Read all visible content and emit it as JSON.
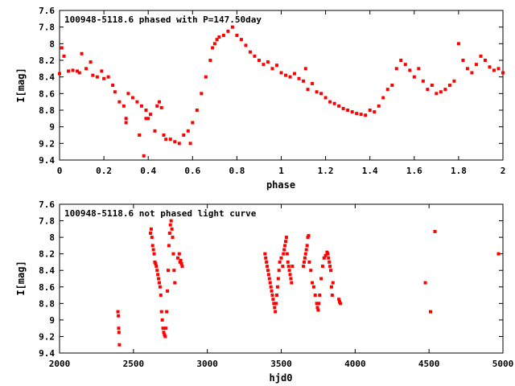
{
  "colors": {
    "points": "#ff0000",
    "frame": "#000000",
    "background": "#ffffff"
  },
  "chart_data": [
    {
      "type": "scatter",
      "title": "100948-5118.6 phased with P=147.50day",
      "xlabel": "phase",
      "ylabel": "I[mag]",
      "xlim": [
        0,
        2
      ],
      "ylim": [
        7.6,
        9.4
      ],
      "y_inverted": true,
      "grid": false,
      "legend": "none",
      "x_ticks": [
        "0",
        "0.2",
        "0.4",
        "0.6",
        "0.8",
        "1",
        "1.2",
        "1.4",
        "1.6",
        "1.8",
        "2"
      ],
      "y_ticks": [
        "7.6",
        "7.8",
        "8",
        "8.2",
        "8.4",
        "8.6",
        "8.8",
        "9",
        "9.2",
        "9.4"
      ],
      "series": [
        {
          "x": [
            0.0,
            0.01,
            0.02,
            0.04,
            0.06,
            0.08,
            0.09,
            0.1,
            0.12,
            0.14,
            0.15,
            0.17,
            0.19,
            0.2,
            0.22,
            0.24,
            0.25,
            0.27,
            0.29,
            0.3,
            0.3,
            0.31,
            0.33,
            0.35,
            0.36,
            0.37,
            0.38,
            0.39,
            0.39,
            0.4,
            0.41,
            0.43,
            0.44,
            0.45,
            0.46,
            0.47,
            0.48,
            0.5,
            0.52,
            0.54,
            0.56,
            0.58,
            0.59,
            0.6,
            0.62,
            0.64,
            0.66,
            0.68,
            0.69,
            0.7,
            0.71,
            0.72,
            0.74,
            0.76,
            0.78,
            0.8,
            0.82,
            0.84,
            0.86,
            0.88,
            0.9,
            0.92,
            0.94,
            0.96,
            0.98,
            1.0,
            1.02,
            1.04,
            1.06,
            1.08,
            1.1,
            1.11,
            1.12,
            1.14,
            1.16,
            1.18,
            1.2,
            1.22,
            1.24,
            1.26,
            1.28,
            1.3,
            1.32,
            1.34,
            1.36,
            1.38,
            1.4,
            1.42,
            1.44,
            1.46,
            1.48,
            1.5,
            1.52,
            1.54,
            1.56,
            1.58,
            1.6,
            1.62,
            1.64,
            1.66,
            1.68,
            1.7,
            1.72,
            1.74,
            1.76,
            1.78,
            1.8,
            1.82,
            1.84,
            1.86,
            1.88,
            1.9,
            1.92,
            1.94,
            1.96,
            1.98,
            2.0
          ],
          "y": [
            8.36,
            8.05,
            8.15,
            8.33,
            8.32,
            8.33,
            8.35,
            8.12,
            8.3,
            8.22,
            8.38,
            8.4,
            8.33,
            8.42,
            8.4,
            8.5,
            8.58,
            8.7,
            8.75,
            8.9,
            8.95,
            8.6,
            8.65,
            8.7,
            9.1,
            8.75,
            9.35,
            8.8,
            8.9,
            8.9,
            8.85,
            9.05,
            8.75,
            8.7,
            8.77,
            9.1,
            9.15,
            9.15,
            9.18,
            9.2,
            9.1,
            9.05,
            9.2,
            8.95,
            8.8,
            8.6,
            8.4,
            8.2,
            8.05,
            8.0,
            7.95,
            7.92,
            7.9,
            7.85,
            7.8,
            7.9,
            7.95,
            8.02,
            8.1,
            8.15,
            8.2,
            8.25,
            8.22,
            8.3,
            8.26,
            8.35,
            8.38,
            8.4,
            8.36,
            8.42,
            8.45,
            8.3,
            8.55,
            8.48,
            8.58,
            8.6,
            8.65,
            8.7,
            8.72,
            8.75,
            8.78,
            8.8,
            8.82,
            8.84,
            8.85,
            8.86,
            8.8,
            8.82,
            8.75,
            8.65,
            8.55,
            8.5,
            8.3,
            8.2,
            8.25,
            8.32,
            8.4,
            8.3,
            8.45,
            8.55,
            8.5,
            8.6,
            8.58,
            8.55,
            8.5,
            8.45,
            8.0,
            8.2,
            8.3,
            8.35,
            8.25,
            8.15,
            8.2,
            8.28,
            8.32,
            8.3,
            8.35
          ]
        }
      ]
    },
    {
      "type": "scatter",
      "title": "100948-5118.6 not phased light curve",
      "xlabel": "hjd0",
      "ylabel": "I[mag]",
      "xlim": [
        2000,
        5000
      ],
      "ylim": [
        7.6,
        9.4
      ],
      "y_inverted": true,
      "grid": false,
      "legend": "none",
      "x_ticks": [
        "2000",
        "2500",
        "3000",
        "3500",
        "4000",
        "4500",
        "5000"
      ],
      "y_ticks": [
        "7.6",
        "7.8",
        "8",
        "8.2",
        "8.4",
        "8.6",
        "8.8",
        "9",
        "9.2",
        "9.4"
      ],
      "series": [
        {
          "x": [
            2395,
            2398,
            2400,
            2402,
            2405,
            2615,
            2620,
            2625,
            2630,
            2635,
            2640,
            2645,
            2650,
            2655,
            2660,
            2665,
            2670,
            2675,
            2680,
            2685,
            2690,
            2695,
            2700,
            2705,
            2710,
            2715,
            2720,
            2725,
            2730,
            2735,
            2740,
            2745,
            2750,
            2755,
            2760,
            2765,
            2770,
            2775,
            2780,
            2800,
            2810,
            2815,
            2820,
            2825,
            2830,
            3390,
            3395,
            3400,
            3405,
            3410,
            3415,
            3420,
            3425,
            3430,
            3435,
            3440,
            3445,
            3450,
            3455,
            3460,
            3465,
            3470,
            3475,
            3480,
            3485,
            3490,
            3500,
            3510,
            3515,
            3520,
            3525,
            3530,
            3535,
            3540,
            3545,
            3550,
            3555,
            3560,
            3565,
            3570,
            3575,
            3650,
            3655,
            3660,
            3665,
            3670,
            3675,
            3680,
            3685,
            3690,
            3700,
            3710,
            3720,
            3730,
            3740,
            3745,
            3750,
            3755,
            3760,
            3770,
            3780,
            3790,
            3800,
            3810,
            3815,
            3820,
            3825,
            3830,
            3835,
            3840,
            3845,
            3850,
            3890,
            3895,
            3900,
            4475,
            4510,
            4540,
            4970
          ],
          "y": [
            8.9,
            8.95,
            9.1,
            9.15,
            9.3,
            7.95,
            7.9,
            8.0,
            8.1,
            8.15,
            8.2,
            8.3,
            8.32,
            8.35,
            8.4,
            8.45,
            8.5,
            8.55,
            8.6,
            8.7,
            8.9,
            9.0,
            9.1,
            9.15,
            9.18,
            9.2,
            9.1,
            8.9,
            8.65,
            8.4,
            8.1,
            7.95,
            7.85,
            7.8,
            7.9,
            8.0,
            8.2,
            8.4,
            8.55,
            8.25,
            8.2,
            8.3,
            8.28,
            8.32,
            8.35,
            8.2,
            8.25,
            8.3,
            8.35,
            8.4,
            8.45,
            8.5,
            8.55,
            8.6,
            8.65,
            8.7,
            8.75,
            8.8,
            8.85,
            8.9,
            8.8,
            8.7,
            8.6,
            8.5,
            8.4,
            8.3,
            8.25,
            8.35,
            8.2,
            8.15,
            8.1,
            8.05,
            8.0,
            8.2,
            8.3,
            8.35,
            8.4,
            8.45,
            8.5,
            8.55,
            8.35,
            8.35,
            8.3,
            8.25,
            8.2,
            8.15,
            8.1,
            8.0,
            7.98,
            8.3,
            8.4,
            8.55,
            8.6,
            8.7,
            8.8,
            8.85,
            8.88,
            8.8,
            8.7,
            8.5,
            8.35,
            8.25,
            8.22,
            8.18,
            8.2,
            8.25,
            8.3,
            8.35,
            8.4,
            8.6,
            8.7,
            8.55,
            8.75,
            8.78,
            8.8,
            8.55,
            8.9,
            7.93,
            8.2
          ]
        }
      ]
    }
  ]
}
